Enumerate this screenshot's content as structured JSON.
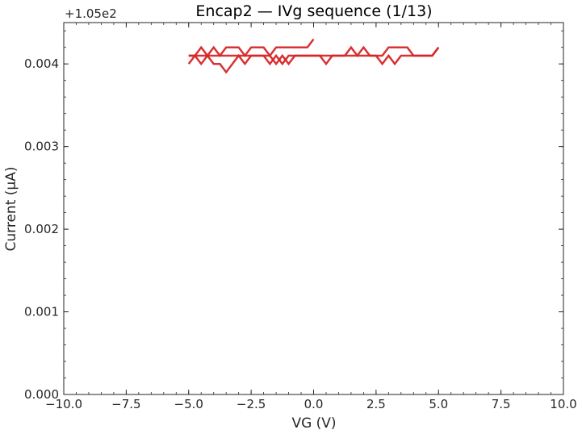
{
  "chart_data": {
    "type": "line",
    "title": "Encap2 — IVg sequence (1/13)",
    "xlabel": "VG (V)",
    "ylabel": "Current (µA)",
    "y_offset_label": "+1.05e2",
    "xlim": [
      -10,
      10
    ],
    "ylim": [
      0.0,
      0.0045
    ],
    "x_ticks": [
      -10,
      -7.5,
      -5,
      -2.5,
      0,
      2.5,
      5,
      7.5,
      10
    ],
    "x_tick_labels": [
      "−10.0",
      "−7.5",
      "−5.0",
      "−2.5",
      "0.0",
      "2.5",
      "5.0",
      "7.5",
      "10.0"
    ],
    "y_ticks": [
      0,
      0.001,
      0.002,
      0.003,
      0.004
    ],
    "y_tick_labels": [
      "0.000",
      "0.001",
      "0.002",
      "0.003",
      "0.004"
    ],
    "grid": false,
    "legend": "none",
    "series_color": "#d62728",
    "series": [
      {
        "x": [
          0.0,
          -0.25,
          -0.5,
          -0.75,
          -1.0,
          -1.25,
          -1.5,
          -1.75,
          -2.0,
          -2.25,
          -2.5,
          -2.75,
          -3.0,
          -3.25,
          -3.5,
          -3.75,
          -4.0,
          -4.25,
          -4.5,
          -4.75,
          -5.0
        ],
        "y": [
          0.0043,
          0.0042,
          0.0042,
          0.0042,
          0.0042,
          0.0042,
          0.0042,
          0.0041,
          0.0042,
          0.0042,
          0.0042,
          0.0041,
          0.0042,
          0.0042,
          0.0042,
          0.0041,
          0.0042,
          0.0041,
          0.0041,
          0.0041,
          0.0041
        ]
      },
      {
        "x": [
          -5.0,
          -4.75,
          -4.5,
          -4.25,
          -4.0,
          -3.75,
          -3.5,
          -3.25,
          -3.0,
          -2.75,
          -2.5,
          -2.25,
          -2.0,
          -1.75,
          -1.5,
          -1.25,
          -1.0,
          -0.75,
          -0.5,
          -0.25,
          0.0
        ],
        "y": [
          0.004,
          0.0041,
          0.004,
          0.0041,
          0.004,
          0.004,
          0.0039,
          0.004,
          0.0041,
          0.004,
          0.0041,
          0.0041,
          0.0041,
          0.004,
          0.0041,
          0.004,
          0.0041,
          0.0041,
          0.0041,
          0.0041,
          0.0041
        ]
      },
      {
        "x": [
          0.0,
          0.25,
          0.5,
          0.75,
          1.0,
          1.25,
          1.5,
          1.75,
          2.0,
          2.25,
          2.5,
          2.75,
          3.0,
          3.25,
          3.5,
          3.75,
          4.0,
          4.25,
          4.5,
          4.75,
          5.0
        ],
        "y": [
          0.0041,
          0.0041,
          0.0041,
          0.0041,
          0.0041,
          0.0041,
          0.0042,
          0.0041,
          0.0042,
          0.0041,
          0.0041,
          0.0041,
          0.0042,
          0.0042,
          0.0042,
          0.0042,
          0.0041,
          0.0041,
          0.0041,
          0.0041,
          0.0042
        ]
      },
      {
        "x": [
          5.0,
          4.75,
          4.5,
          4.25,
          4.0,
          3.75,
          3.5,
          3.25,
          3.0,
          2.75,
          2.5,
          2.25,
          2.0,
          1.75,
          1.5,
          1.25,
          1.0,
          0.75,
          0.5,
          0.25,
          0.0
        ],
        "y": [
          0.0042,
          0.0041,
          0.0041,
          0.0041,
          0.0041,
          0.0041,
          0.0041,
          0.004,
          0.0041,
          0.004,
          0.0041,
          0.0041,
          0.0041,
          0.0041,
          0.0041,
          0.0041,
          0.0041,
          0.0041,
          0.004,
          0.0041,
          0.0041
        ]
      },
      {
        "x": [
          0.0,
          -0.25,
          -0.5,
          -0.75,
          -1.0,
          -1.25,
          -1.5,
          -1.75,
          -2.0,
          -2.25,
          -2.5,
          -2.75,
          -3.0,
          -3.25,
          -3.5,
          -3.75,
          -4.0,
          -4.25,
          -4.5,
          -4.75,
          -5.0
        ],
        "y": [
          0.0041,
          0.0041,
          0.0041,
          0.0041,
          0.004,
          0.0041,
          0.004,
          0.0041,
          0.0041,
          0.0041,
          0.0041,
          0.0041,
          0.0041,
          0.0041,
          0.0041,
          0.0041,
          0.0041,
          0.0041,
          0.0042,
          0.0041,
          0.0041
        ]
      }
    ]
  }
}
